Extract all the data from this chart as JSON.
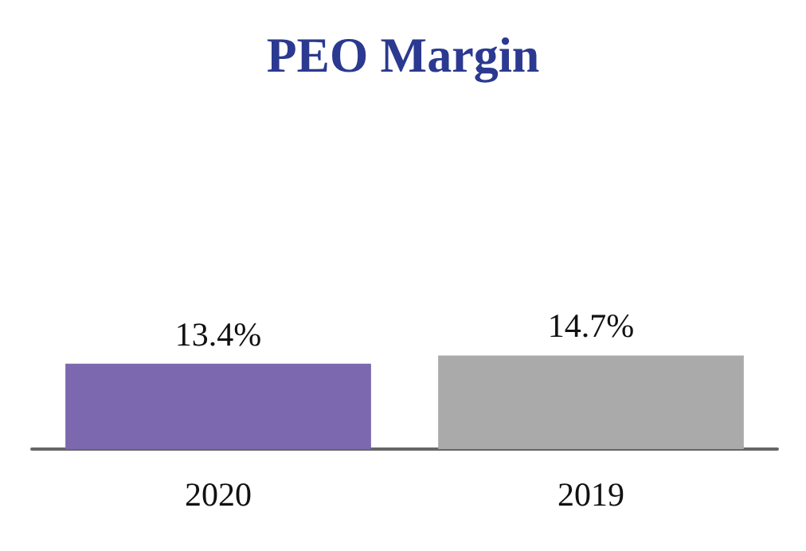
{
  "chart_data": {
    "type": "bar",
    "title": "PEO Margin",
    "categories": [
      "2020",
      "2019"
    ],
    "values": [
      13.4,
      14.7
    ],
    "colors": [
      "#7b68ae",
      "#aaaaaa"
    ],
    "value_labels": [
      "13.4%",
      "14.7%"
    ]
  }
}
